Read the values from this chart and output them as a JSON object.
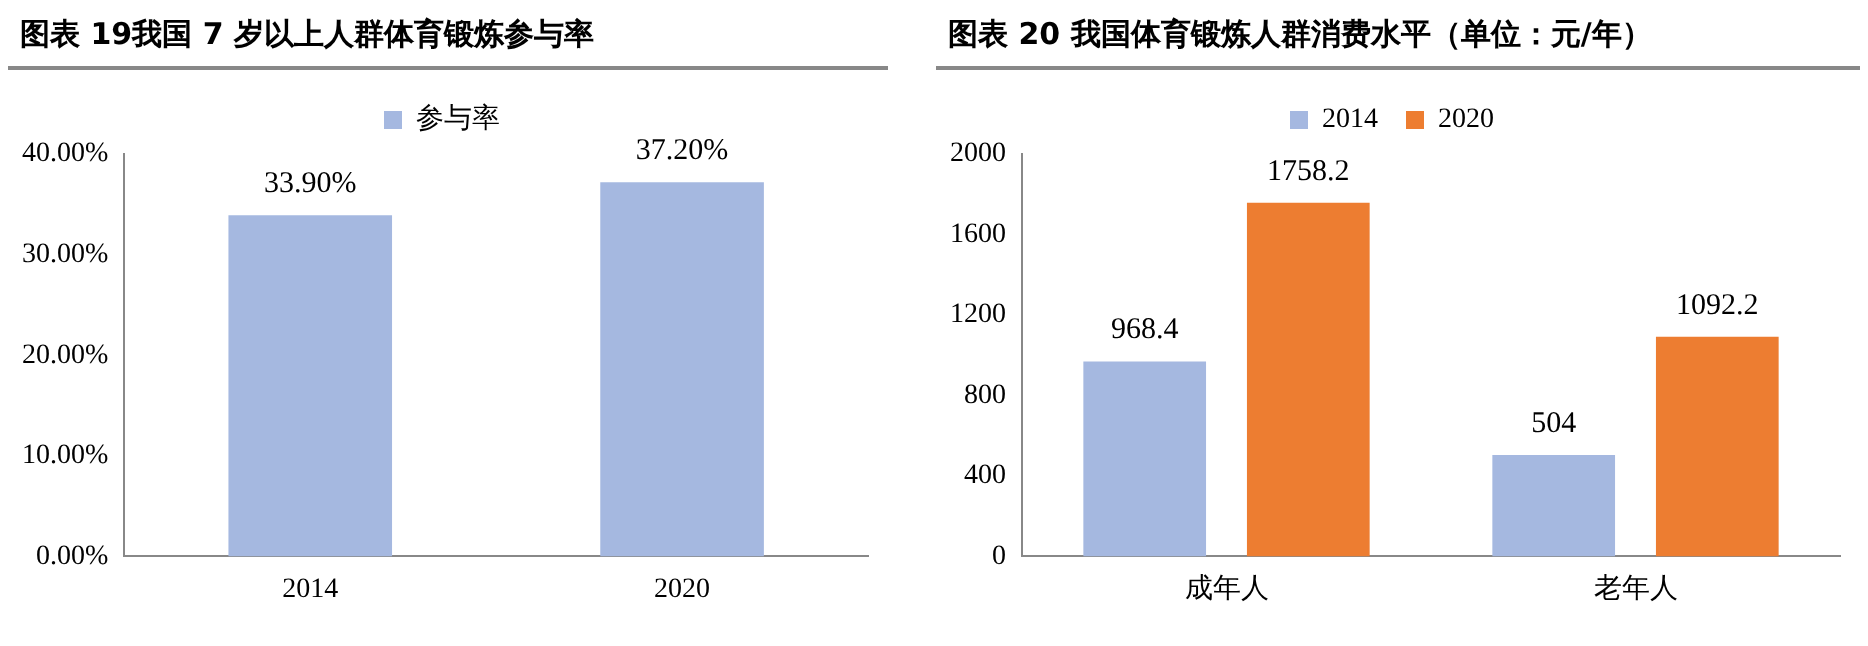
{
  "chart_data": [
    {
      "type": "bar",
      "title": "图表 19我国 7 岁以上人群体育锻炼参与率",
      "categories": [
        "2014",
        "2020"
      ],
      "series": [
        {
          "name": "参与率",
          "color": "#a5b8e0",
          "values": [
            33.9,
            37.2
          ],
          "value_labels": [
            "33.90%",
            "37.20%"
          ]
        }
      ],
      "ylim": [
        0,
        40
      ],
      "yticks": [
        {
          "value": 0,
          "label": "0.00%"
        },
        {
          "value": 10,
          "label": "10.00%"
        },
        {
          "value": 20,
          "label": "20.00%"
        },
        {
          "value": 30,
          "label": "30.00%"
        },
        {
          "value": 40,
          "label": "40.00%"
        }
      ],
      "grid": false,
      "legend": "top"
    },
    {
      "type": "bar",
      "title": "图表 20 我国体育锻炼人群消费水平（单位：元/年）",
      "categories": [
        "成年人",
        "老年人"
      ],
      "series": [
        {
          "name": "2014",
          "color": "#a5b8e0",
          "values": [
            968.4,
            504
          ]
        },
        {
          "name": "2020",
          "color": "#ed7d31",
          "values": [
            1758.2,
            1092.2
          ]
        }
      ],
      "ylim": [
        0,
        2000
      ],
      "yticks": [
        0,
        400,
        800,
        1200,
        1600,
        2000
      ],
      "grid": false,
      "legend": "top",
      "data_labels": true
    }
  ]
}
